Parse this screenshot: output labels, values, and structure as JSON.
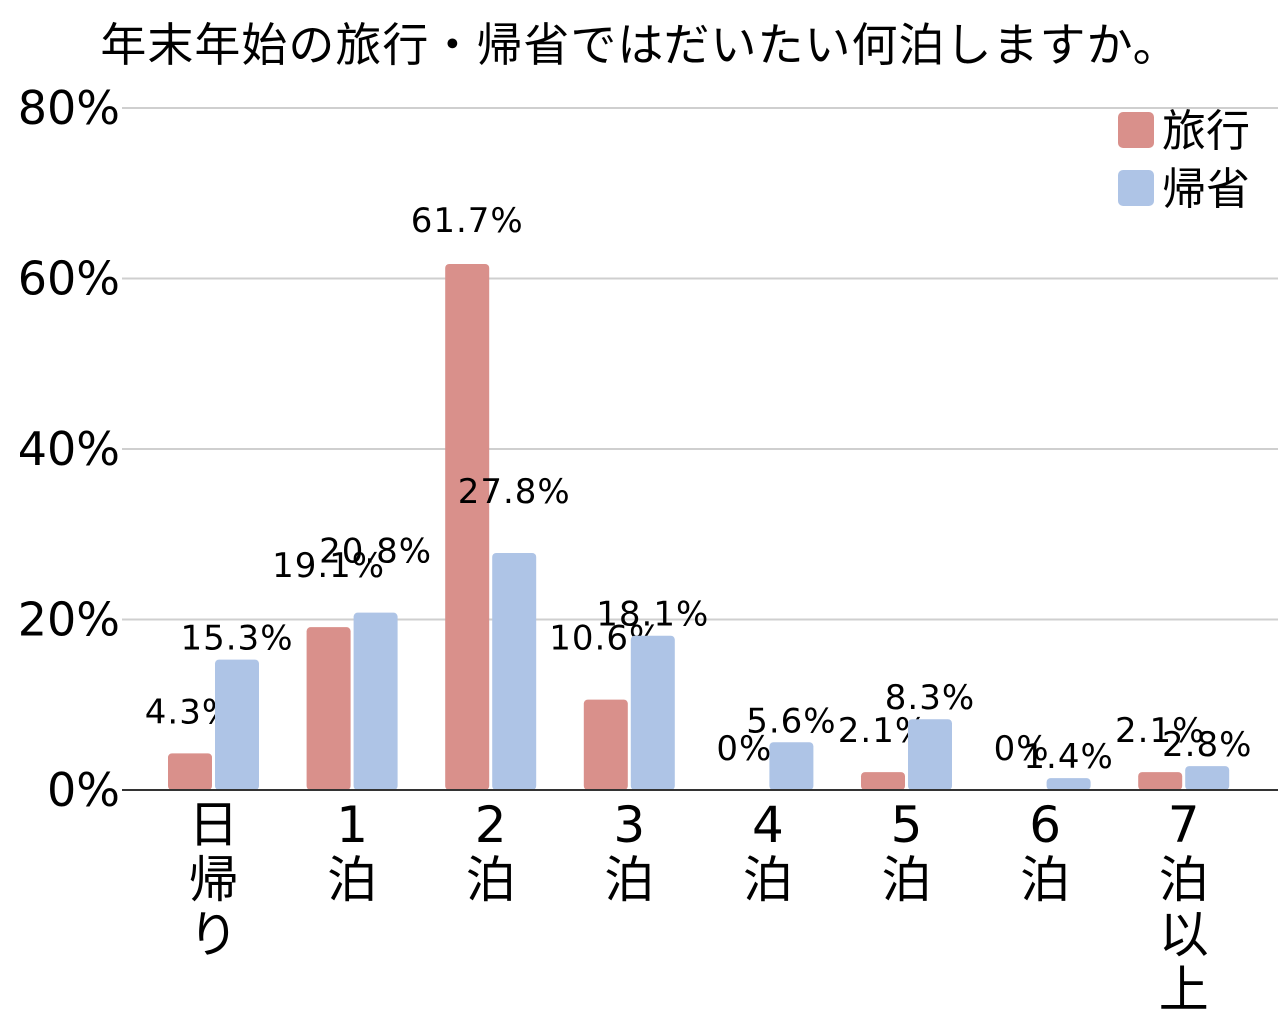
{
  "title": "年末年始の旅行・帰省ではだいたい何泊しますか。",
  "chart_data": {
    "type": "bar",
    "title": "年末年始の旅行・帰省ではだいたい何泊しますか。",
    "categories": [
      "日帰り",
      "1泊",
      "2泊",
      "3泊",
      "4泊",
      "5泊",
      "6泊",
      "7泊以上"
    ],
    "category_lines": [
      [
        "日",
        "帰",
        "り"
      ],
      [
        "1",
        "泊"
      ],
      [
        "2",
        "泊"
      ],
      [
        "3",
        "泊"
      ],
      [
        "4",
        "泊"
      ],
      [
        "5",
        "泊"
      ],
      [
        "6",
        "泊"
      ],
      [
        "7",
        "泊",
        "以",
        "上"
      ]
    ],
    "series": [
      {
        "name": "旅行",
        "color": "#d9908b",
        "values": [
          4.3,
          19.1,
          61.7,
          10.6,
          0,
          2.1,
          0,
          2.1
        ],
        "labels": [
          "4.3%",
          "19.1%",
          "61.7%",
          "10.6%",
          "0%",
          "2.1%",
          "0%",
          "2.1%"
        ]
      },
      {
        "name": "帰省",
        "color": "#aec4e6",
        "values": [
          15.3,
          20.8,
          27.8,
          18.1,
          5.6,
          8.3,
          1.4,
          2.8
        ],
        "labels": [
          "15.3%",
          "20.8%",
          "27.8%",
          "18.1%",
          "5.6%",
          "8.3%",
          "1.4%",
          "2.8%"
        ]
      }
    ],
    "ylim": [
      0,
      80
    ],
    "yticks": [
      "0%",
      "20%",
      "40%",
      "60%",
      "80%"
    ],
    "xlabel": "",
    "ylabel": "",
    "grid": true,
    "legend_position": "top-right"
  }
}
